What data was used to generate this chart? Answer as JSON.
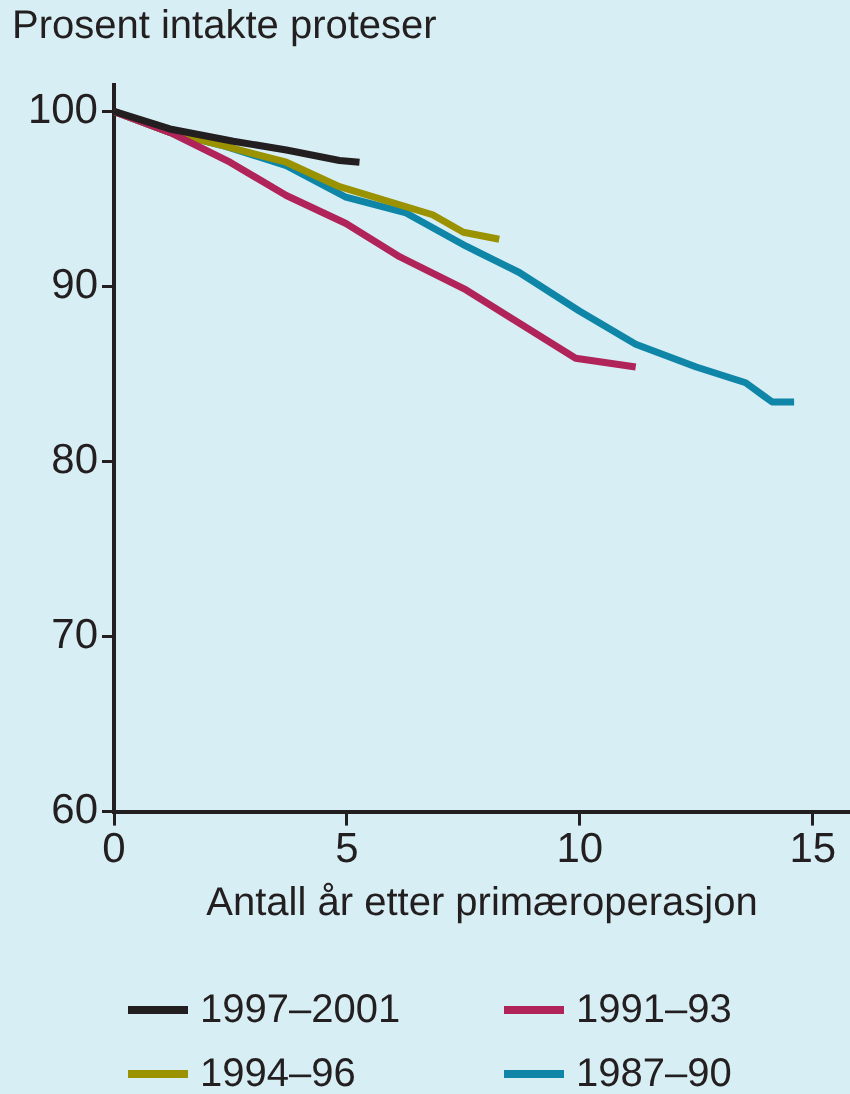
{
  "chart_data": {
    "type": "line",
    "ylabel": "Prosent intakte proteser",
    "xlabel": "Antall år etter primæroperasjon",
    "xlim": [
      0,
      15.8
    ],
    "xticks": [
      0,
      5,
      10,
      15
    ],
    "ylim": [
      60,
      101.5
    ],
    "yticks": [
      60,
      70,
      80,
      90,
      100
    ],
    "grid": false,
    "legend": "bottom",
    "marker": "none",
    "line_style": "solid",
    "series": [
      {
        "name": "1997–2001",
        "color": "#231f20",
        "x": [
          0,
          1.2,
          2.56,
          3.7,
          4.84,
          5.27
        ],
        "values": [
          100,
          99.0,
          98.3,
          97.8,
          97.2,
          97.1
        ]
      },
      {
        "name": "1991–93",
        "color": "#b0245a",
        "x": [
          0,
          1.2,
          2.49,
          3.7,
          4.98,
          6.13,
          7.56,
          9.91,
          11.2
        ],
        "values": [
          100,
          98.8,
          97.1,
          95.2,
          93.6,
          91.7,
          89.8,
          85.9,
          85.4
        ]
      },
      {
        "name": "1994–96",
        "color": "#9a9200",
        "x": [
          0,
          1.2,
          2.4,
          3.7,
          4.84,
          6.84,
          7.5,
          8.27
        ],
        "values": [
          100,
          98.8,
          98.0,
          97.1,
          95.7,
          94.1,
          93.1,
          92.7
        ]
      },
      {
        "name": "1987–90",
        "color": "#0f86a8",
        "x": [
          0,
          1.2,
          2.4,
          3.7,
          4.98,
          6.27,
          7.56,
          8.7,
          9.99,
          11.2,
          12.5,
          13.56,
          14.13,
          14.6
        ],
        "values": [
          100,
          98.8,
          98.0,
          96.9,
          95.1,
          94.2,
          92.3,
          90.8,
          88.6,
          86.7,
          85.4,
          84.5,
          83.4,
          83.4
        ]
      }
    ]
  }
}
